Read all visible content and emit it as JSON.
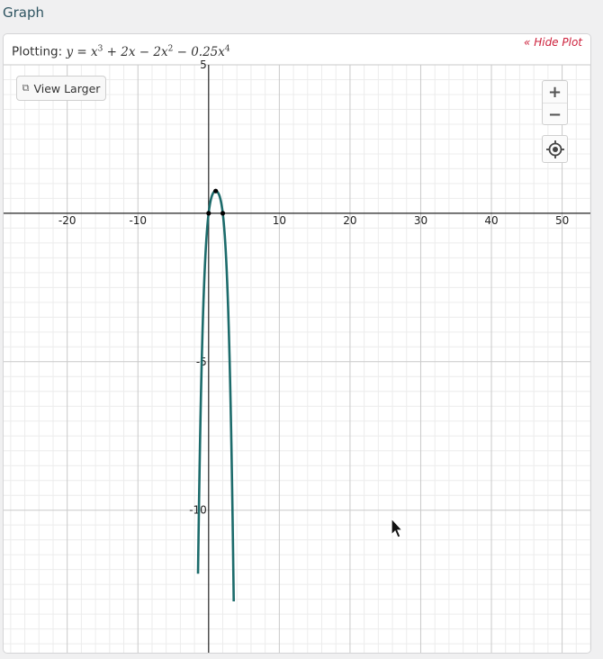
{
  "section": {
    "title": "Graph"
  },
  "controls": {
    "hide_plot": "« Hide Plot",
    "plotting_label": "Plotting:",
    "view_larger": "View Larger",
    "zoom_in": "+",
    "zoom_out": "−"
  },
  "equation": {
    "lhs": "y",
    "terms": [
      {
        "text": "x",
        "sup": "3"
      },
      {
        "text": " + 2x − 2x",
        "sup": "2"
      },
      {
        "text": " − 0.25x",
        "sup": "4"
      }
    ]
  },
  "icons": {
    "view_larger": "external-window-icon",
    "locate": "crosshair-target-icon",
    "cursor": "mouse-pointer-icon"
  },
  "colors": {
    "curve": "#1c6b6b",
    "accent": "#cc1f3a",
    "axis": "#222222"
  },
  "chart_data": {
    "type": "line",
    "function": "y = x^3 + 2x - 2x^2 - 0.25x^4",
    "xlim": [
      -29,
      54
    ],
    "ylim": [
      -14.8,
      5.0
    ],
    "x_ticks": [
      -20,
      -10,
      10,
      20,
      30,
      40,
      50
    ],
    "y_ticks": [
      5,
      -5,
      -10
    ],
    "grid": true,
    "points": [
      {
        "x": 0,
        "y": 0
      },
      {
        "x": 2,
        "y": 0
      },
      {
        "x": 1,
        "y": 0.75
      }
    ]
  }
}
